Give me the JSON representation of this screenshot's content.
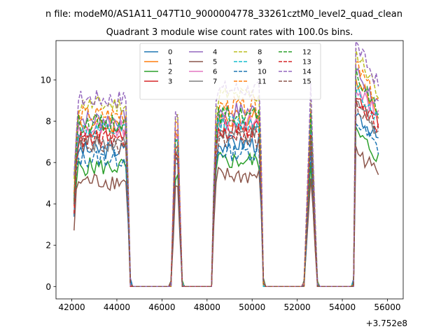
{
  "header": {
    "file_line": "n file: modeM0/AS1A11_047T10_9000004778_33261cztM0_level2_quad_clean",
    "title": "Quadrant 3 module wise count rates with 100.0s bins."
  },
  "chart_data": {
    "type": "line",
    "title": "Quadrant 3 module wise count rates with 100.0s bins.",
    "xlabel": "",
    "ylabel": "",
    "x_offset_label": "+3.752e8",
    "xlim": [
      41300,
      56700
    ],
    "ylim": [
      -0.6,
      11.9
    ],
    "xticks": [
      42000,
      44000,
      46000,
      48000,
      50000,
      52000,
      54000,
      56000
    ],
    "xtick_labels": [
      "42000",
      "44000",
      "46000",
      "48000",
      "50000",
      "52000",
      "54000",
      "56000"
    ],
    "yticks": [
      0,
      2,
      4,
      6,
      8,
      10
    ],
    "ytick_labels": [
      "0",
      "2",
      "4",
      "6",
      "8",
      "10"
    ],
    "grid": false,
    "legend_placement": "upper center, 4 columns",
    "series": [
      {
        "name": "0",
        "color": "#1f77b4",
        "dash": "solid",
        "level": 6.6
      },
      {
        "name": "1",
        "color": "#ff7f0e",
        "dash": "solid",
        "level": 7.8
      },
      {
        "name": "2",
        "color": "#2ca02c",
        "dash": "solid",
        "level": 5.8
      },
      {
        "name": "3",
        "color": "#d62728",
        "dash": "solid",
        "level": 7.3
      },
      {
        "name": "4",
        "color": "#9467bd",
        "dash": "solid",
        "level": 8.1
      },
      {
        "name": "5",
        "color": "#8c564b",
        "dash": "solid",
        "level": 5.1
      },
      {
        "name": "6",
        "color": "#e377c2",
        "dash": "solid",
        "level": 7.6
      },
      {
        "name": "7",
        "color": "#7f7f7f",
        "dash": "solid",
        "level": 7.0
      },
      {
        "name": "8",
        "color": "#bcbd22",
        "dash": "dashed",
        "level": 8.8
      },
      {
        "name": "9",
        "color": "#17becf",
        "dash": "dashed",
        "level": 7.5
      },
      {
        "name": "10",
        "color": "#1f77b4",
        "dash": "dashed",
        "level": 6.2
      },
      {
        "name": "11",
        "color": "#ff7f0e",
        "dash": "dashed",
        "level": 8.3
      },
      {
        "name": "12",
        "color": "#2ca02c",
        "dash": "dashed",
        "level": 7.9
      },
      {
        "name": "13",
        "color": "#d62728",
        "dash": "dashed",
        "level": 7.1
      },
      {
        "name": "14",
        "color": "#9467bd",
        "dash": "dashed",
        "level": 9.1
      },
      {
        "name": "15",
        "color": "#8c564b",
        "dash": "dashed",
        "level": 6.8
      }
    ],
    "segments": [
      {
        "x_start": 42100,
        "x_end": 44600,
        "shape": "plateau",
        "gain": 1.0
      },
      {
        "x_start": 46400,
        "x_end": 46900,
        "shape": "spike",
        "gain": 1.1
      },
      {
        "x_start": 48300,
        "x_end": 50500,
        "shape": "plateau",
        "gain": 1.05
      },
      {
        "x_start": 52300,
        "x_end": 52900,
        "shape": "spike",
        "gain": 1.0
      },
      {
        "x_start": 54500,
        "x_end": 55650,
        "shape": "peak_decay",
        "gain": 1.25
      }
    ],
    "zero_baseline": 0
  }
}
